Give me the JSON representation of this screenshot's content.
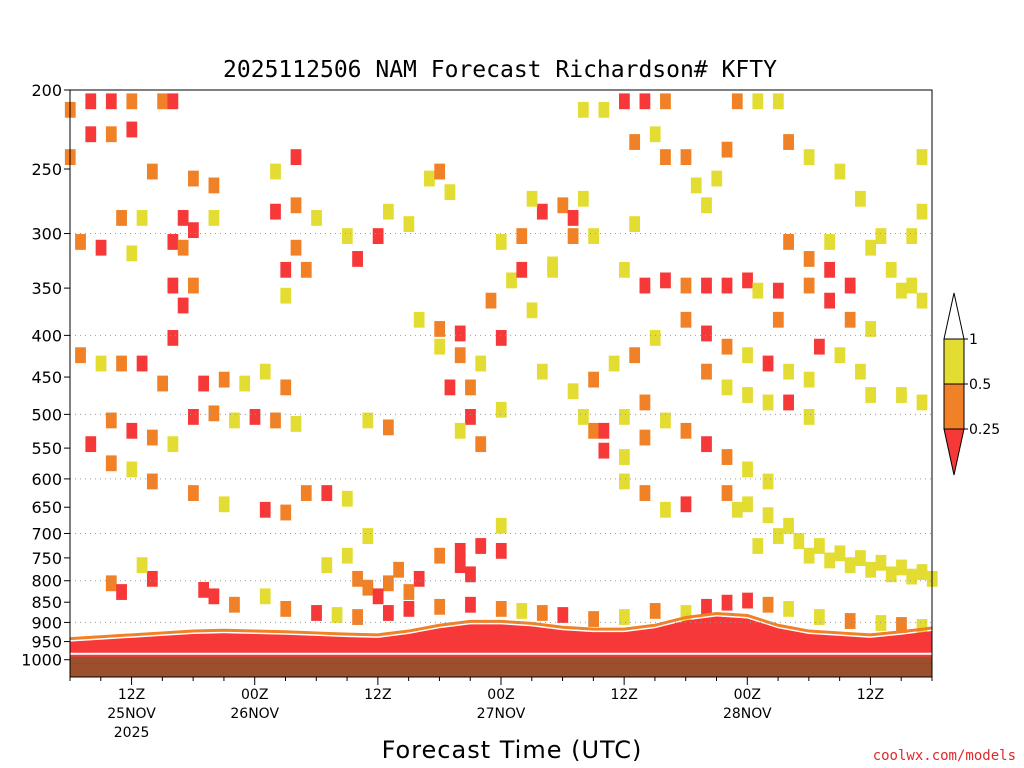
{
  "chart_data": {
    "type": "heatmap",
    "title": "2025112506 NAM Forecast Richardson# KFTY",
    "xlabel": "Forecast Time (UTC)",
    "ylabel": "",
    "credit": "coolwx.com/models",
    "ylim": [
      1000,
      200
    ],
    "ylog": true,
    "grid": "dotted-horizontal",
    "y_ticks": [
      "200",
      "250",
      "300",
      "350",
      "400",
      "450",
      "500",
      "550",
      "600",
      "650",
      "700",
      "750",
      "800",
      "850",
      "900",
      "950",
      "1000"
    ],
    "y_grid": [
      300,
      400,
      500,
      600,
      700,
      800,
      900
    ],
    "x_hours": [
      6,
      90
    ],
    "x_ticks": [
      {
        "hour": 12,
        "label1": "12Z",
        "label2": "25NOV",
        "label3": "2025"
      },
      {
        "hour": 24,
        "label1": "00Z",
        "label2": "26NOV",
        "label3": ""
      },
      {
        "hour": 36,
        "label1": "12Z",
        "label2": "",
        "label3": ""
      },
      {
        "hour": 48,
        "label1": "00Z",
        "label2": "27NOV",
        "label3": ""
      },
      {
        "hour": 60,
        "label1": "12Z",
        "label2": "",
        "label3": ""
      },
      {
        "hour": 72,
        "label1": "00Z",
        "label2": "28NOV",
        "label3": ""
      },
      {
        "hour": 84,
        "label1": "12Z",
        "label2": "",
        "label3": ""
      }
    ],
    "colorbar": {
      "levels": [
        "1",
        "0.5",
        "0.25"
      ],
      "colors": {
        "low": "#f63838",
        "mid": "#f08126",
        "high": "#e3dd33",
        "ground": "#9c4f2c",
        "grid": "#9a9a9a"
      }
    },
    "ground_hpa": 1000,
    "boundary_layer": [
      [
        6,
        950
      ],
      [
        9,
        945
      ],
      [
        12,
        940
      ],
      [
        15,
        935
      ],
      [
        18,
        930
      ],
      [
        21,
        928
      ],
      [
        24,
        930
      ],
      [
        27,
        932
      ],
      [
        30,
        935
      ],
      [
        33,
        938
      ],
      [
        36,
        940
      ],
      [
        39,
        930
      ],
      [
        42,
        915
      ],
      [
        45,
        905
      ],
      [
        48,
        905
      ],
      [
        51,
        910
      ],
      [
        54,
        920
      ],
      [
        57,
        925
      ],
      [
        60,
        925
      ],
      [
        63,
        915
      ],
      [
        66,
        895
      ],
      [
        69,
        885
      ],
      [
        72,
        890
      ],
      [
        75,
        915
      ],
      [
        78,
        930
      ],
      [
        81,
        935
      ],
      [
        84,
        940
      ],
      [
        87,
        932
      ],
      [
        90,
        922
      ]
    ],
    "cells": [
      [
        6,
        210,
        2
      ],
      [
        8,
        205,
        1
      ],
      [
        10,
        205,
        1
      ],
      [
        12,
        205,
        2
      ],
      [
        8,
        225,
        1
      ],
      [
        10,
        225,
        2
      ],
      [
        12,
        222,
        1
      ],
      [
        6,
        240,
        2
      ],
      [
        15,
        205,
        2
      ],
      [
        16,
        205,
        1
      ],
      [
        14,
        250,
        2
      ],
      [
        18,
        255,
        2
      ],
      [
        20,
        260,
        2
      ],
      [
        11,
        285,
        2
      ],
      [
        13,
        285,
        3
      ],
      [
        17,
        285,
        1
      ],
      [
        18,
        295,
        1
      ],
      [
        20,
        285,
        3
      ],
      [
        16,
        305,
        1
      ],
      [
        17,
        310,
        2
      ],
      [
        7,
        305,
        2
      ],
      [
        9,
        310,
        1
      ],
      [
        12,
        315,
        3
      ],
      [
        16,
        345,
        1
      ],
      [
        18,
        345,
        2
      ],
      [
        17,
        365,
        1
      ],
      [
        16,
        400,
        1
      ],
      [
        7,
        420,
        2
      ],
      [
        9,
        430,
        3
      ],
      [
        11,
        430,
        2
      ],
      [
        13,
        430,
        1
      ],
      [
        15,
        455,
        2
      ],
      [
        19,
        455,
        1
      ],
      [
        21,
        450,
        2
      ],
      [
        23,
        455,
        3
      ],
      [
        25,
        440,
        3
      ],
      [
        27,
        460,
        2
      ],
      [
        10,
        505,
        2
      ],
      [
        12,
        520,
        1
      ],
      [
        14,
        530,
        2
      ],
      [
        16,
        540,
        3
      ],
      [
        18,
        500,
        1
      ],
      [
        20,
        495,
        2
      ],
      [
        22,
        505,
        3
      ],
      [
        24,
        500,
        1
      ],
      [
        26,
        505,
        2
      ],
      [
        28,
        510,
        3
      ],
      [
        8,
        540,
        1
      ],
      [
        10,
        570,
        2
      ],
      [
        12,
        580,
        3
      ],
      [
        14,
        600,
        2
      ],
      [
        18,
        620,
        2
      ],
      [
        21,
        640,
        3
      ],
      [
        25,
        650,
        1
      ],
      [
        27,
        655,
        2
      ],
      [
        29,
        620,
        2
      ],
      [
        31,
        620,
        1
      ],
      [
        33,
        630,
        3
      ],
      [
        35,
        505,
        3
      ],
      [
        37,
        515,
        2
      ],
      [
        26,
        250,
        3
      ],
      [
        28,
        240,
        1
      ],
      [
        26,
        280,
        1
      ],
      [
        28,
        275,
        2
      ],
      [
        30,
        285,
        3
      ],
      [
        28,
        310,
        2
      ],
      [
        27,
        330,
        1
      ],
      [
        29,
        330,
        2
      ],
      [
        27,
        355,
        3
      ],
      [
        33,
        300,
        3
      ],
      [
        34,
        320,
        1
      ],
      [
        36,
        300,
        1
      ],
      [
        37,
        280,
        3
      ],
      [
        39,
        290,
        3
      ],
      [
        41,
        255,
        3
      ],
      [
        42,
        250,
        2
      ],
      [
        43,
        265,
        3
      ],
      [
        40,
        380,
        3
      ],
      [
        42,
        390,
        2
      ],
      [
        44,
        395,
        1
      ],
      [
        42,
        410,
        3
      ],
      [
        44,
        420,
        2
      ],
      [
        46,
        430,
        3
      ],
      [
        48,
        400,
        1
      ],
      [
        45,
        460,
        2
      ],
      [
        43,
        460,
        1
      ],
      [
        47,
        360,
        2
      ],
      [
        49,
        340,
        3
      ],
      [
        50,
        330,
        1
      ],
      [
        48,
        305,
        3
      ],
      [
        50,
        300,
        2
      ],
      [
        52,
        280,
        1
      ],
      [
        54,
        275,
        2
      ],
      [
        51,
        270,
        3
      ],
      [
        55,
        285,
        1
      ],
      [
        56,
        270,
        3
      ],
      [
        53,
        325,
        3
      ],
      [
        51,
        370,
        3
      ],
      [
        45,
        500,
        1
      ],
      [
        44,
        520,
        3
      ],
      [
        46,
        540,
        2
      ],
      [
        48,
        490,
        3
      ],
      [
        55,
        465,
        3
      ],
      [
        57,
        450,
        2
      ],
      [
        59,
        430,
        3
      ],
      [
        61,
        420,
        2
      ],
      [
        63,
        400,
        3
      ],
      [
        55,
        300,
        2
      ],
      [
        57,
        300,
        3
      ],
      [
        53,
        330,
        3
      ],
      [
        52,
        440,
        3
      ],
      [
        57,
        520,
        2
      ],
      [
        58,
        550,
        1
      ],
      [
        60,
        560,
        3
      ],
      [
        62,
        530,
        2
      ],
      [
        64,
        505,
        3
      ],
      [
        66,
        520,
        2
      ],
      [
        68,
        540,
        1
      ],
      [
        70,
        560,
        2
      ],
      [
        72,
        580,
        3
      ],
      [
        74,
        600,
        3
      ],
      [
        60,
        600,
        3
      ],
      [
        62,
        620,
        2
      ],
      [
        64,
        650,
        3
      ],
      [
        66,
        640,
        1
      ],
      [
        56,
        210,
        3
      ],
      [
        58,
        210,
        3
      ],
      [
        60,
        205,
        1
      ],
      [
        62,
        205,
        1
      ],
      [
        64,
        205,
        2
      ],
      [
        61,
        230,
        2
      ],
      [
        63,
        225,
        3
      ],
      [
        64,
        240,
        2
      ],
      [
        66,
        240,
        2
      ],
      [
        67,
        260,
        3
      ],
      [
        69,
        255,
        3
      ],
      [
        71,
        205,
        2
      ],
      [
        73,
        205,
        3
      ],
      [
        75,
        205,
        3
      ],
      [
        70,
        235,
        2
      ],
      [
        68,
        275,
        3
      ],
      [
        61,
        290,
        3
      ],
      [
        60,
        330,
        3
      ],
      [
        62,
        345,
        1
      ],
      [
        64,
        340,
        1
      ],
      [
        66,
        345,
        2
      ],
      [
        68,
        345,
        1
      ],
      [
        70,
        345,
        1
      ],
      [
        72,
        340,
        1
      ],
      [
        66,
        380,
        2
      ],
      [
        68,
        395,
        1
      ],
      [
        70,
        410,
        2
      ],
      [
        72,
        420,
        3
      ],
      [
        74,
        430,
        1
      ],
      [
        76,
        440,
        3
      ],
      [
        78,
        450,
        3
      ],
      [
        68,
        440,
        2
      ],
      [
        70,
        460,
        3
      ],
      [
        72,
        470,
        3
      ],
      [
        74,
        480,
        3
      ],
      [
        62,
        480,
        2
      ],
      [
        60,
        500,
        3
      ],
      [
        58,
        520,
        1
      ],
      [
        56,
        500,
        3
      ],
      [
        76,
        305,
        2
      ],
      [
        78,
        320,
        2
      ],
      [
        80,
        330,
        1
      ],
      [
        82,
        345,
        1
      ],
      [
        78,
        345,
        2
      ],
      [
        80,
        360,
        1
      ],
      [
        82,
        380,
        2
      ],
      [
        84,
        390,
        3
      ],
      [
        79,
        410,
        1
      ],
      [
        81,
        420,
        3
      ],
      [
        83,
        440,
        3
      ],
      [
        84,
        470,
        3
      ],
      [
        80,
        305,
        3
      ],
      [
        75,
        350,
        1
      ],
      [
        73,
        350,
        3
      ],
      [
        76,
        480,
        1
      ],
      [
        78,
        500,
        3
      ],
      [
        86,
        330,
        3
      ],
      [
        87,
        350,
        3
      ],
      [
        88,
        345,
        3
      ],
      [
        89,
        360,
        3
      ],
      [
        84,
        310,
        3
      ],
      [
        85,
        300,
        3
      ],
      [
        83,
        270,
        3
      ],
      [
        81,
        250,
        3
      ],
      [
        76,
        230,
        2
      ],
      [
        78,
        240,
        3
      ],
      [
        87,
        470,
        3
      ],
      [
        89,
        480,
        3
      ],
      [
        89,
        240,
        3
      ],
      [
        89,
        280,
        3
      ],
      [
        88,
        300,
        3
      ],
      [
        75,
        380,
        2
      ],
      [
        75,
        700,
        3
      ],
      [
        77,
        710,
        3
      ],
      [
        79,
        720,
        3
      ],
      [
        81,
        735,
        3
      ],
      [
        83,
        745,
        3
      ],
      [
        85,
        755,
        3
      ],
      [
        87,
        765,
        3
      ],
      [
        89,
        775,
        3
      ],
      [
        78,
        740,
        3
      ],
      [
        80,
        750,
        3
      ],
      [
        76,
        680,
        3
      ],
      [
        74,
        660,
        3
      ],
      [
        72,
        640,
        3
      ],
      [
        70,
        620,
        2
      ],
      [
        71,
        650,
        3
      ],
      [
        73,
        720,
        3
      ],
      [
        82,
        760,
        3
      ],
      [
        84,
        770,
        3
      ],
      [
        86,
        780,
        3
      ],
      [
        88,
        785,
        3
      ],
      [
        90,
        790,
        3
      ],
      [
        44,
        730,
        1
      ],
      [
        46,
        720,
        1
      ],
      [
        48,
        730,
        1
      ],
      [
        42,
        740,
        2
      ],
      [
        44,
        760,
        1
      ],
      [
        45,
        780,
        1
      ],
      [
        48,
        680,
        3
      ],
      [
        38,
        770,
        2
      ],
      [
        40,
        790,
        1
      ],
      [
        37,
        800,
        2
      ],
      [
        35,
        810,
        2
      ],
      [
        36,
        830,
        1
      ],
      [
        34,
        790,
        2
      ],
      [
        31,
        760,
        3
      ],
      [
        39,
        820,
        2
      ],
      [
        33,
        740,
        3
      ],
      [
        35,
        700,
        3
      ],
      [
        10,
        800,
        2
      ],
      [
        11,
        820,
        1
      ],
      [
        14,
        790,
        1
      ],
      [
        13,
        760,
        3
      ],
      [
        19,
        815,
        1
      ],
      [
        20,
        830,
        1
      ],
      [
        22,
        850,
        2
      ],
      [
        25,
        830,
        3
      ],
      [
        27,
        860,
        2
      ],
      [
        30,
        870,
        1
      ],
      [
        32,
        875,
        3
      ],
      [
        34,
        880,
        2
      ],
      [
        37,
        870,
        1
      ],
      [
        39,
        860,
        1
      ],
      [
        42,
        855,
        2
      ],
      [
        45,
        850,
        1
      ],
      [
        48,
        860,
        2
      ],
      [
        50,
        865,
        3
      ],
      [
        52,
        870,
        2
      ],
      [
        54,
        875,
        1
      ],
      [
        63,
        865,
        2
      ],
      [
        66,
        870,
        3
      ],
      [
        68,
        855,
        1
      ],
      [
        70,
        845,
        1
      ],
      [
        72,
        840,
        1
      ],
      [
        74,
        850,
        2
      ],
      [
        76,
        860,
        3
      ],
      [
        79,
        880,
        3
      ],
      [
        82,
        890,
        2
      ],
      [
        85,
        895,
        3
      ],
      [
        87,
        900,
        2
      ],
      [
        89,
        905,
        3
      ],
      [
        60,
        880,
        3
      ],
      [
        57,
        885,
        2
      ]
    ]
  }
}
